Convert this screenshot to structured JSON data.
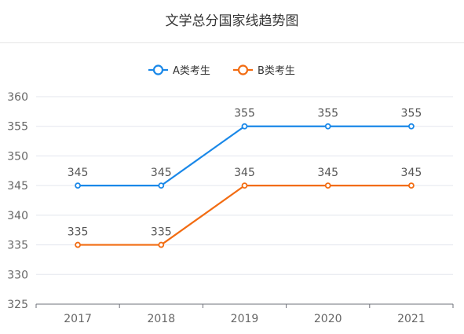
{
  "chart_data": {
    "type": "line",
    "title": "文学总分国家线趋势图",
    "categories": [
      "2017",
      "2018",
      "2019",
      "2020",
      "2021"
    ],
    "ylim": [
      325,
      360
    ],
    "yticks": [
      325,
      330,
      335,
      340,
      345,
      350,
      355,
      360
    ],
    "grid": true,
    "legend_position": "top-center",
    "series": [
      {
        "name": "A类考生",
        "color": "#1a88e8",
        "values": [
          345,
          345,
          355,
          355,
          355
        ]
      },
      {
        "name": "B类考生",
        "color": "#f26c12",
        "values": [
          335,
          335,
          345,
          345,
          345
        ]
      }
    ]
  }
}
